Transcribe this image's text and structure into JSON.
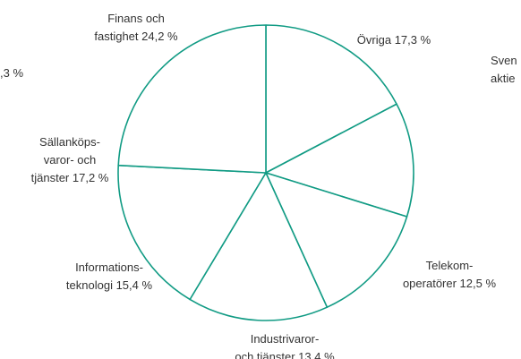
{
  "chart_data": {
    "type": "pie",
    "categories": [
      "Övriga",
      "Telekom-\noperatörer",
      "Industrivaror-\noch tjänster",
      "Informations-\nteknologi",
      "Sällanköps-\nvaror- och\ntjänster",
      "Finans och\nfastighet"
    ],
    "values": [
      17.3,
      12.5,
      13.4,
      15.4,
      17.2,
      24.2
    ],
    "value_labels": [
      "17,3 %",
      "12,5 %",
      "13.4 %",
      "15,4 %",
      "17,2 %",
      "24,2 %"
    ],
    "color": "#119b84",
    "annotations": [
      ",3 %",
      "Sven",
      "aktie"
    ]
  }
}
